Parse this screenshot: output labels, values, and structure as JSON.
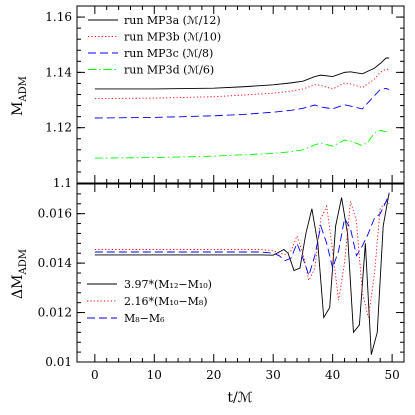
{
  "chart_data": [
    {
      "type": "line",
      "ylabel": "M_ADM",
      "xlim": [
        -3,
        52
      ],
      "ylim": [
        1.1,
        1.164
      ],
      "xticks": [
        0,
        10,
        20,
        30,
        40,
        50
      ],
      "yticks": [
        1.1,
        1.12,
        1.14,
        1.16
      ],
      "ytick_labels": [
        "1.1",
        "1.12",
        "1.14",
        "1.16"
      ],
      "legend_position": "top-left",
      "series": [
        {
          "name": "run MP3a (ℳ/12)",
          "color": "#000000",
          "dash": "solid",
          "x": [
            0,
            10,
            20,
            25,
            30,
            33,
            35,
            37,
            38,
            40,
            42,
            43,
            45,
            47,
            48,
            49,
            49.5
          ],
          "y": [
            1.134,
            1.134,
            1.1343,
            1.1348,
            1.1355,
            1.1362,
            1.1368,
            1.1385,
            1.139,
            1.1385,
            1.14,
            1.1402,
            1.1395,
            1.1415,
            1.1432,
            1.1452,
            1.1452
          ]
        },
        {
          "name": "run MP3b (ℳ/10)",
          "color": "#ff0000",
          "dash": "dotted",
          "x": [
            0,
            10,
            20,
            25,
            30,
            33,
            35,
            37,
            38,
            40,
            42,
            43,
            45,
            47,
            48,
            49,
            49.5
          ],
          "y": [
            1.1305,
            1.1307,
            1.1312,
            1.1318,
            1.1325,
            1.1332,
            1.134,
            1.1355,
            1.1353,
            1.134,
            1.1362,
            1.1358,
            1.1345,
            1.1375,
            1.14,
            1.1412,
            1.141
          ]
        },
        {
          "name": "run MP3c (ℳ/8)",
          "color": "#0000ff",
          "dash": "dashed",
          "x": [
            0,
            10,
            20,
            25,
            30,
            33,
            35,
            37,
            38,
            40,
            42,
            43,
            45,
            47,
            48,
            49,
            49.5
          ],
          "y": [
            1.1235,
            1.1237,
            1.1243,
            1.1248,
            1.1256,
            1.1263,
            1.127,
            1.1282,
            1.1275,
            1.1268,
            1.1283,
            1.1278,
            1.1268,
            1.1315,
            1.1338,
            1.1342,
            1.1338
          ]
        },
        {
          "name": "run MP3d (ℳ/6)",
          "color": "#00ff00",
          "dash": "dashdot",
          "x": [
            0,
            10,
            20,
            25,
            30,
            33,
            35,
            37,
            38,
            40,
            42,
            43,
            45,
            46,
            47,
            48,
            49,
            49.5
          ],
          "y": [
            1.109,
            1.1092,
            1.1097,
            1.1102,
            1.1107,
            1.1113,
            1.112,
            1.1138,
            1.1145,
            1.1133,
            1.1155,
            1.1152,
            1.1135,
            1.115,
            1.118,
            1.119,
            1.1185,
            1.1178
          ]
        }
      ]
    },
    {
      "type": "line",
      "xlabel": "t/ℳ",
      "ylabel": "ΔM_ADM",
      "xlim": [
        -3,
        52
      ],
      "ylim": [
        0.01,
        0.0172
      ],
      "xticks": [
        0,
        10,
        20,
        30,
        40,
        50
      ],
      "xtick_labels": [
        "0",
        "10",
        "20",
        "30",
        "40",
        "50"
      ],
      "yticks": [
        0.01,
        0.012,
        0.014,
        0.016
      ],
      "ytick_labels": [
        "0.01",
        "0.012",
        "0.014",
        "0.016"
      ],
      "legend_position": "bottom-left",
      "series": [
        {
          "name": "3.97*(M₁₂−M₁₀)",
          "color": "#000000",
          "dash": "solid",
          "x": [
            0,
            10,
            20,
            28,
            30,
            31,
            31.8,
            32.5,
            33.5,
            34.5,
            35.5,
            36.5,
            37.5,
            38.5,
            39.5,
            40.5,
            41.5,
            42.5,
            43.5,
            44.5,
            45.5,
            46.5,
            47.5,
            48.5,
            49.5
          ],
          "y": [
            0.01433,
            0.01433,
            0.01433,
            0.01433,
            0.01432,
            0.01445,
            0.01455,
            0.0144,
            0.0137,
            0.0138,
            0.0152,
            0.0162,
            0.0148,
            0.0118,
            0.0122,
            0.0155,
            0.01665,
            0.0152,
            0.0112,
            0.0115,
            0.0148,
            0.0103,
            0.0112,
            0.0155,
            0.01685
          ]
        },
        {
          "name": "2.16*(M₁₀−M₈)",
          "color": "#ff0000",
          "dash": "dotted",
          "x": [
            0,
            10,
            20,
            28,
            30,
            31,
            32,
            33,
            34,
            35,
            36,
            37,
            38,
            39,
            40,
            41,
            42,
            43,
            44,
            45,
            46,
            47,
            48,
            49,
            49.5
          ],
          "y": [
            0.01455,
            0.01455,
            0.01455,
            0.01455,
            0.0145,
            0.0144,
            0.01435,
            0.0145,
            0.0151,
            0.0144,
            0.0133,
            0.0138,
            0.0158,
            0.0163,
            0.0145,
            0.0125,
            0.014,
            0.0165,
            0.0157,
            0.0128,
            0.0118,
            0.0135,
            0.0162,
            0.0165,
            0.0164
          ]
        },
        {
          "name": "M₈−M₆",
          "color": "#0000ff",
          "dash": "dashed",
          "x": [
            0,
            10,
            20,
            28,
            30,
            31,
            32,
            33,
            34,
            35,
            36,
            37,
            38,
            39,
            40,
            41,
            42,
            43,
            44,
            45,
            46,
            47,
            48,
            49,
            49.5
          ],
          "y": [
            0.01445,
            0.01445,
            0.01445,
            0.01445,
            0.0144,
            0.0143,
            0.0141,
            0.0142,
            0.0148,
            0.0142,
            0.0135,
            0.0143,
            0.0155,
            0.0148,
            0.0138,
            0.0145,
            0.0158,
            0.0154,
            0.0143,
            0.0147,
            0.0152,
            0.0158,
            0.016,
            0.0165,
            0.0168
          ]
        }
      ]
    }
  ]
}
